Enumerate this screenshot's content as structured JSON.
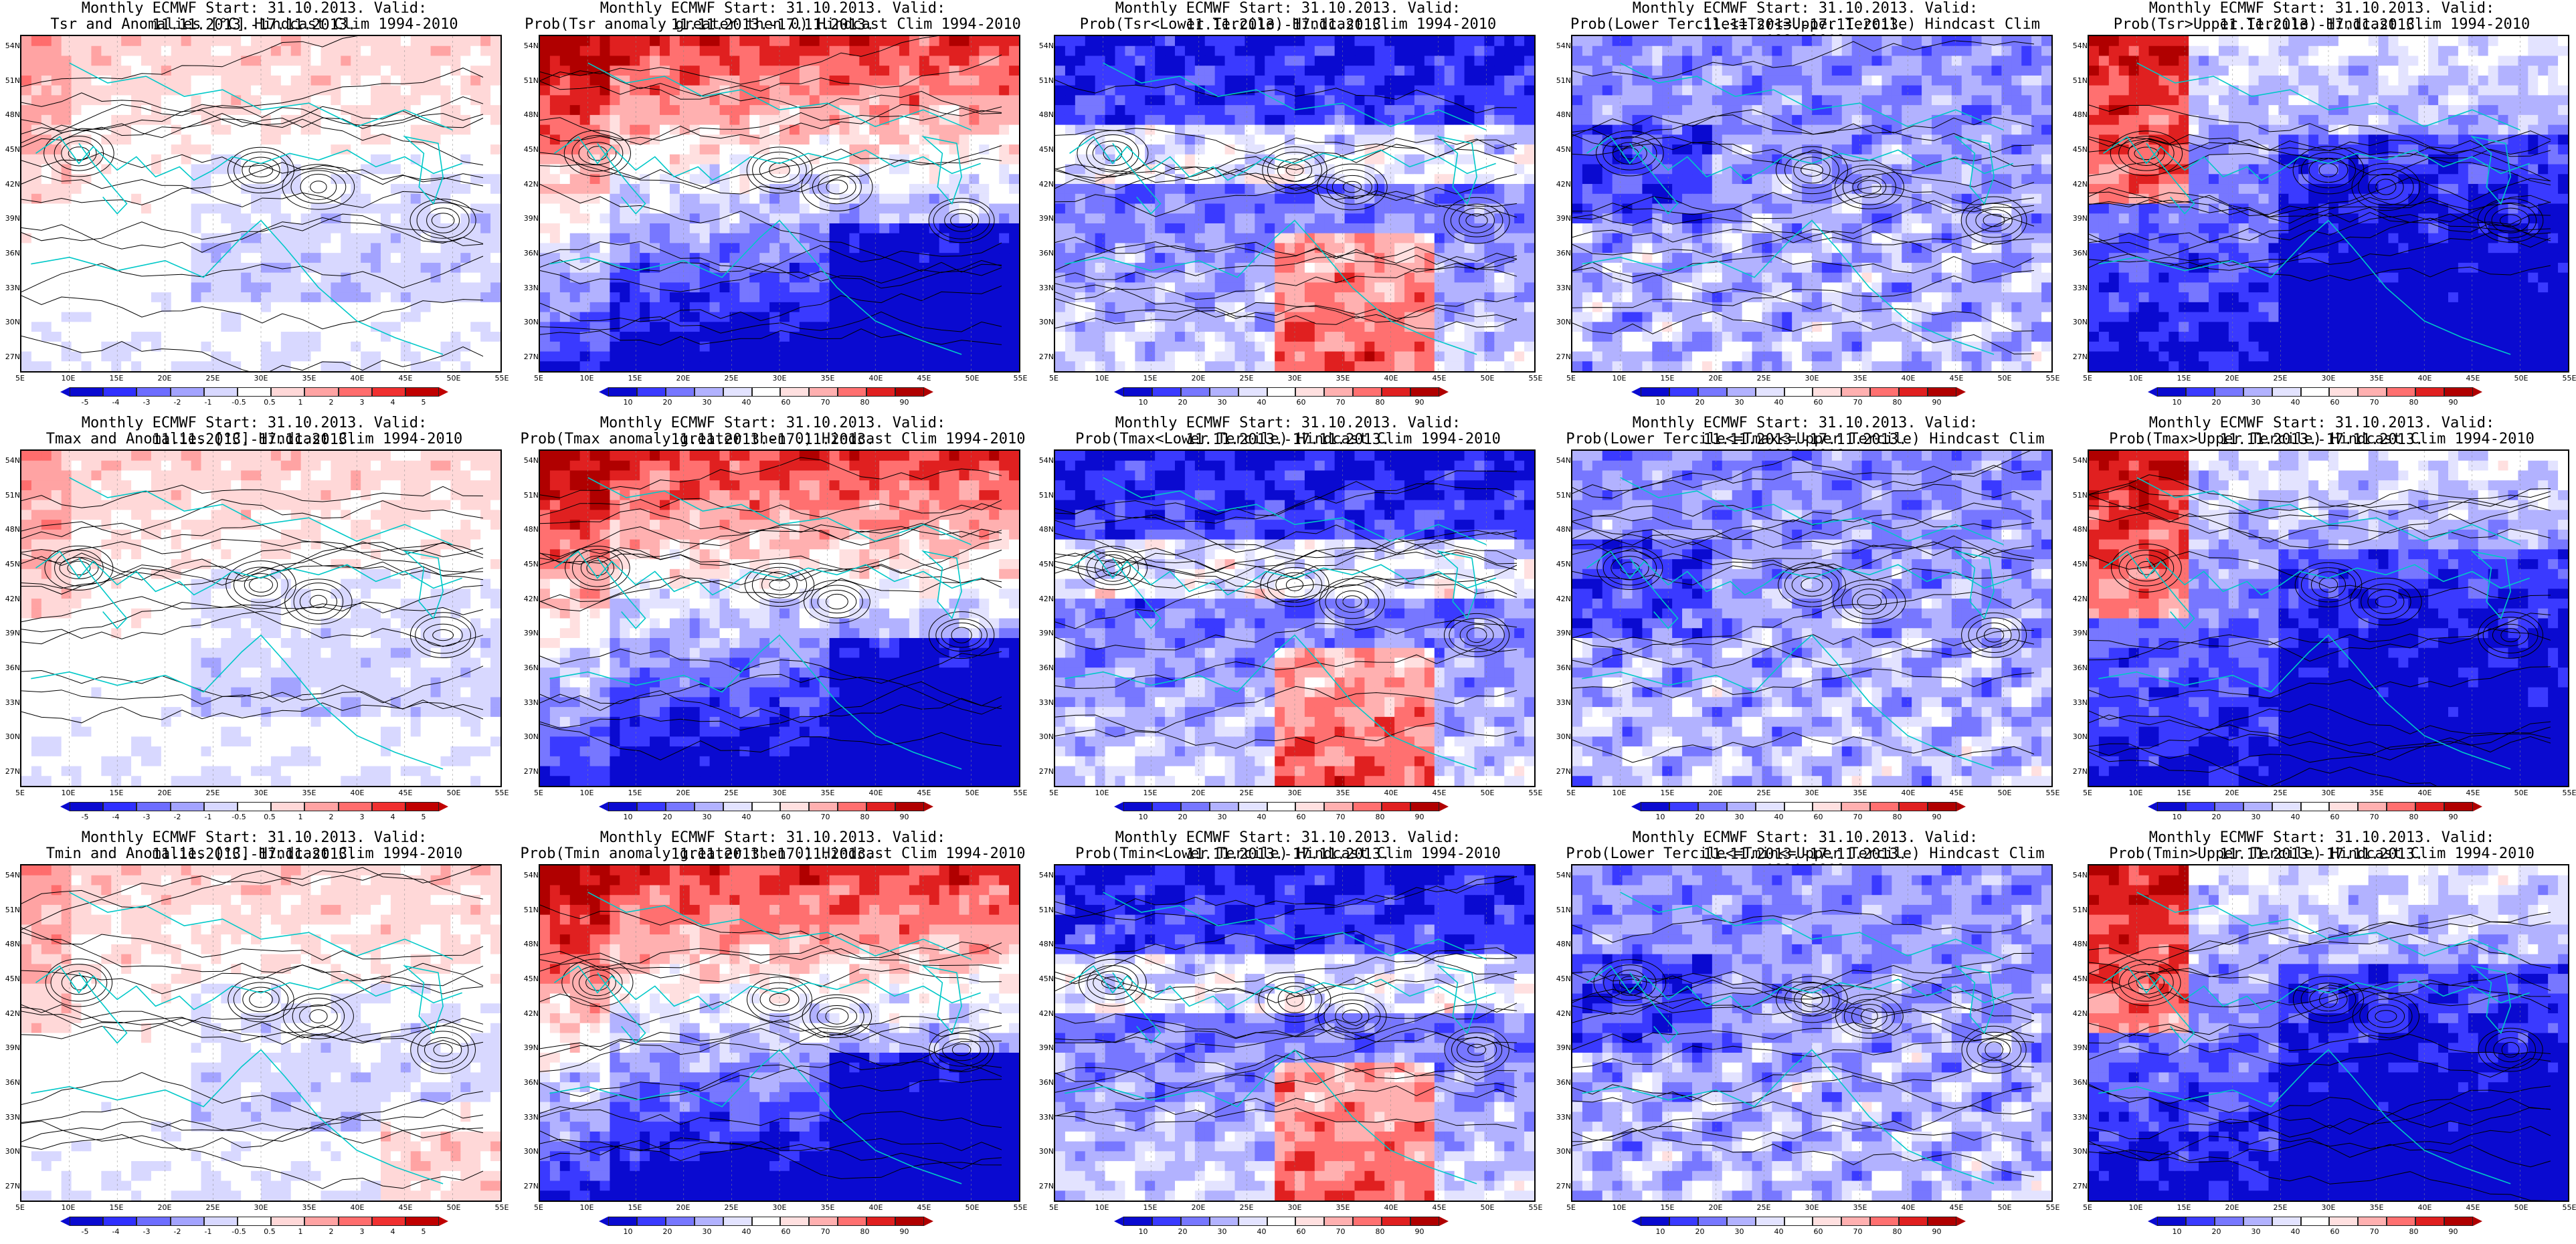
{
  "colors": {
    "diverging_anom": [
      "#0a0ad0",
      "#3030ff",
      "#6d6dff",
      "#a3a3ff",
      "#d8d8ff",
      "#ffffff",
      "#ffffff",
      "#ffd8d8",
      "#ffa3a3",
      "#ff6d6d",
      "#f03030",
      "#c00000"
    ],
    "prob": [
      "#0a0ad0",
      "#3a3aff",
      "#7777ff",
      "#b2b2ff",
      "#e3e3ff",
      "#ffffff",
      "#ffe0e0",
      "#ffb0b0",
      "#ff7070",
      "#e02020",
      "#b00000"
    ],
    "coast": "#00c8c8",
    "contour": "#000000"
  },
  "axes": {
    "lat_labels": [
      "54N",
      "51N",
      "48N",
      "45N",
      "42N",
      "39N",
      "36N",
      "33N",
      "30N",
      "27N"
    ],
    "lon_labels": [
      "5E",
      "10E",
      "15E",
      "20E",
      "25E",
      "30E",
      "35E",
      "40E",
      "45E",
      "50E",
      "55E"
    ]
  },
  "colorbars": {
    "anom_ticks": [
      "-5",
      "-4",
      "-3",
      "-2",
      "-1",
      "-0.5",
      "0.5",
      "1",
      "2",
      "3",
      "4",
      "5"
    ],
    "prob_ticks": [
      "10",
      "20",
      "30",
      "40",
      "60",
      "70",
      "80",
      "90"
    ]
  },
  "panels": [
    {
      "line1": "Monthly ECMWF Start: 31.10.2013. Valid: 11.11.2013.-17.11.2013.",
      "line2": "Tsr and Anomalies [°C] Hindcast Clim 1994-2010",
      "type": "anom",
      "pattern": "anom_tsr"
    },
    {
      "line1": "Monthly ECMWF Start: 31.10.2013. Valid: 11.11.2013.-17.11.2013.",
      "line2": "Prob(Tsr anomaly greater then 0) Hindcast Clim 1994-2010",
      "type": "prob",
      "pattern": "gt0"
    },
    {
      "line1": "Monthly ECMWF Start: 31.10.2013. Valid: 11.11.2013.-17.11.2013.",
      "line2": "Prob(Tsr<Lower Tercile) Hindcast Clim 1994-2010",
      "type": "prob",
      "pattern": "lower"
    },
    {
      "line1": "Monthly ECMWF Start: 31.10.2013. Valid: 11.11.2013.-17.11.2013.",
      "line2": "Prob(Lower Tercile<=Tsr<=Upper Tercile) Hindcast Clim 1994-2010",
      "type": "prob",
      "pattern": "middle"
    },
    {
      "line1": "Monthly ECMWF Start: 31.10.2013. Valid: 11.11.2013.-17.11.2013.",
      "line2": "Prob(Tsr>Upper Tercile) Hindcast Clim 1994-2010",
      "type": "prob",
      "pattern": "upper"
    },
    {
      "line1": "Monthly ECMWF Start: 31.10.2013. Valid: 11.11.2013.-17.11.2013.",
      "line2": "Tmax and Anomalies [°C] Hindcast Clim 1994-2010",
      "type": "anom",
      "pattern": "anom_tmax"
    },
    {
      "line1": "Monthly ECMWF Start: 31.10.2013. Valid: 11.11.2013.-17.11.2013.",
      "line2": "Prob(Tmax anomaly greater then 0) Hindcast Clim 1994-2010",
      "type": "prob",
      "pattern": "gt0"
    },
    {
      "line1": "Monthly ECMWF Start: 31.10.2013. Valid: 11.11.2013.-17.11.2013.",
      "line2": "Prob(Tmax<Lower Tercile) Hindcast Clim 1994-2010",
      "type": "prob",
      "pattern": "lower"
    },
    {
      "line1": "Monthly ECMWF Start: 31.10.2013. Valid: 11.11.2013.-17.11.2013.",
      "line2": "Prob(Lower Tercile<=Tmax<=Upper Tercile) Hindcast Clim 1994-2010",
      "type": "prob",
      "pattern": "middle"
    },
    {
      "line1": "Monthly ECMWF Start: 31.10.2013. Valid: 11.11.2013.-17.11.2013.",
      "line2": "Prob(Tmax>Upper Tercile) Hindcast Clim 1994-2010",
      "type": "prob",
      "pattern": "upper"
    },
    {
      "line1": "Monthly ECMWF Start: 31.10.2013. Valid: 11.11.2013.-17.11.2013.",
      "line2": "Tmin and Anomalies [°C] Hindcast Clim 1994-2010",
      "type": "anom",
      "pattern": "anom_tmin"
    },
    {
      "line1": "Monthly ECMWF Start: 31.10.2013. Valid: 11.11.2013.-17.11.2013.",
      "line2": "Prob(Tmin anomaly greater then 0) Hindcast Clim 1994-2010",
      "type": "prob",
      "pattern": "gt0"
    },
    {
      "line1": "Monthly ECMWF Start: 31.10.2013. Valid: 11.11.2013.-17.11.2013.",
      "line2": "Prob(Tmin<Lower Tercile) Hindcast Clim 1994-2010",
      "type": "prob",
      "pattern": "lower"
    },
    {
      "line1": "Monthly ECMWF Start: 31.10.2013. Valid: 11.11.2013.-17.11.2013.",
      "line2": "Prob(Lower Tercile<=Tmin<=Upper Tercile) Hindcast Clim 1994-2010",
      "type": "prob",
      "pattern": "middle"
    },
    {
      "line1": "Monthly ECMWF Start: 31.10.2013. Valid: 11.11.2013.-17.11.2013.",
      "line2": "Prob(Tmin>Upper Tercile) Hindcast Clim 1994-2010",
      "type": "prob",
      "pattern": "upper"
    }
  ]
}
